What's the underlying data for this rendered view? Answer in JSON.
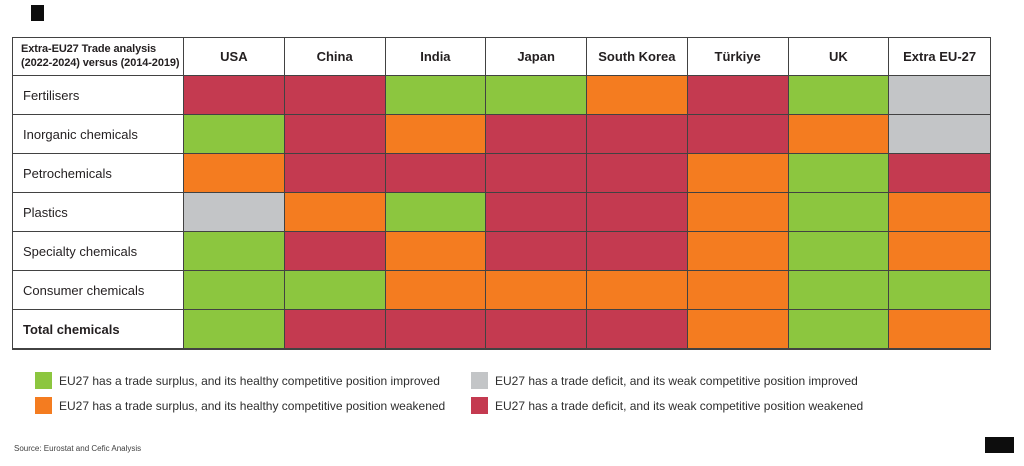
{
  "table": {
    "title_line1": "Extra-EU27 Trade analysis",
    "title_line2": "(2022-2024) versus (2014-2019)"
  },
  "source_note": "Source: Eurostat and Cefic Analysis",
  "status_colors": {
    "surplus_improved": "#8CC63F",
    "surplus_weakened": "#F47C20",
    "deficit_improved": "#C3C5C7",
    "deficit_weakened": "#C43A50"
  },
  "legend": {
    "items": [
      {
        "status": "surplus_improved",
        "text": "EU27 has a trade surplus, and its healthy competitive position improved"
      },
      {
        "status": "surplus_weakened",
        "text": "EU27 has a trade surplus, and its healthy competitive position weakened"
      },
      {
        "status": "deficit_improved",
        "text": "EU27 has a trade deficit, and its weak competitive position improved"
      },
      {
        "status": "deficit_weakened",
        "text": "EU27 has a trade deficit, and its weak competitive position weakened"
      }
    ]
  },
  "chart_data": {
    "type": "heatmap",
    "title": "Extra-EU27 Trade analysis (2022-2024) versus (2014-2019)",
    "columns": [
      "USA",
      "China",
      "India",
      "Japan",
      "South Korea",
      "Türkiye",
      "UK",
      "Extra EU-27"
    ],
    "value_meaning": {
      "surplus_improved": "EU27 trade surplus, competitive position improved (green)",
      "surplus_weakened": "EU27 trade surplus, competitive position weakened (orange)",
      "deficit_improved": "EU27 trade deficit, competitive position improved (gray)",
      "deficit_weakened": "EU27 trade deficit, competitive position weakened (red)"
    },
    "rows": [
      {
        "label": "Fertilisers",
        "bold": false,
        "cells": [
          "deficit_weakened",
          "deficit_weakened",
          "surplus_improved",
          "surplus_improved",
          "surplus_weakened",
          "deficit_weakened",
          "surplus_improved",
          "deficit_improved"
        ]
      },
      {
        "label": "Inorganic chemicals",
        "bold": false,
        "cells": [
          "surplus_improved",
          "deficit_weakened",
          "surplus_weakened",
          "deficit_weakened",
          "deficit_weakened",
          "deficit_weakened",
          "surplus_weakened",
          "deficit_improved"
        ]
      },
      {
        "label": "Petrochemicals",
        "bold": false,
        "cells": [
          "surplus_weakened",
          "deficit_weakened",
          "deficit_weakened",
          "deficit_weakened",
          "deficit_weakened",
          "surplus_weakened",
          "surplus_improved",
          "deficit_weakened"
        ]
      },
      {
        "label": "Plastics",
        "bold": false,
        "cells": [
          "deficit_improved",
          "surplus_weakened",
          "surplus_improved",
          "deficit_weakened",
          "deficit_weakened",
          "surplus_weakened",
          "surplus_improved",
          "surplus_weakened"
        ]
      },
      {
        "label": "Specialty chemicals",
        "bold": false,
        "cells": [
          "surplus_improved",
          "deficit_weakened",
          "surplus_weakened",
          "deficit_weakened",
          "deficit_weakened",
          "surplus_weakened",
          "surplus_improved",
          "surplus_weakened"
        ]
      },
      {
        "label": "Consumer chemicals",
        "bold": false,
        "cells": [
          "surplus_improved",
          "surplus_improved",
          "surplus_weakened",
          "surplus_weakened",
          "surplus_weakened",
          "surplus_weakened",
          "surplus_improved",
          "surplus_improved"
        ]
      },
      {
        "label": "Total chemicals",
        "bold": true,
        "cells": [
          "surplus_improved",
          "deficit_weakened",
          "deficit_weakened",
          "deficit_weakened",
          "deficit_weakened",
          "surplus_weakened",
          "surplus_improved",
          "surplus_weakened"
        ]
      }
    ],
    "legend_position": "bottom"
  }
}
